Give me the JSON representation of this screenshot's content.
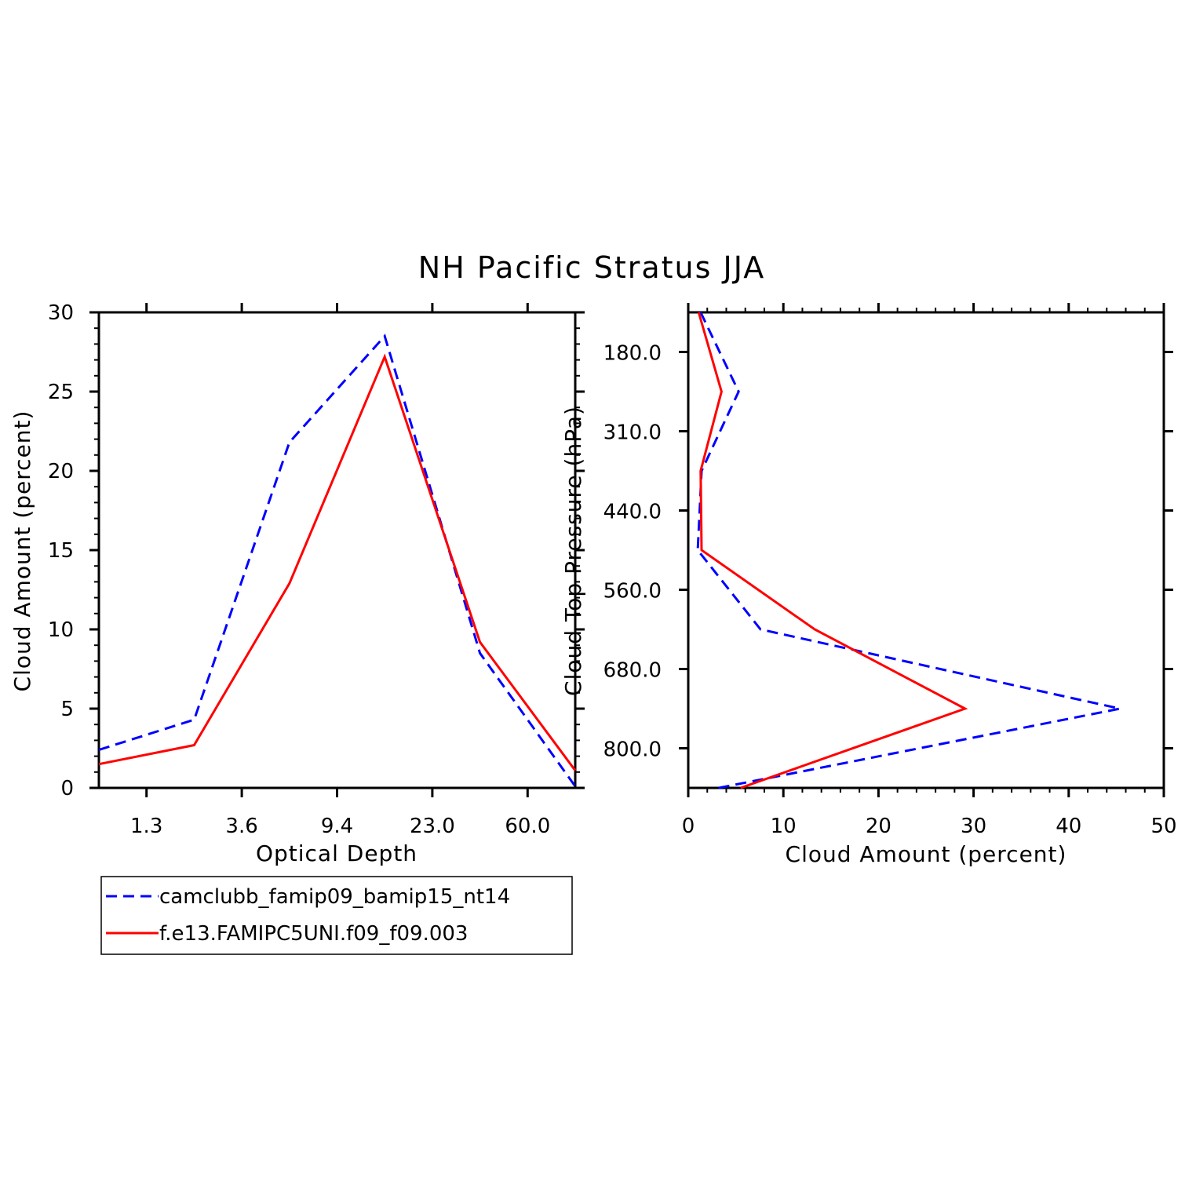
{
  "chart_data": [
    {
      "type": "line",
      "title": "NH Pacific Stratus JJA",
      "xlabel": "Optical Depth",
      "ylabel": "Cloud Amount (percent)",
      "x_tick_labels": [
        "1.3",
        "3.6",
        "9.4",
        "23.0",
        "60.0"
      ],
      "ylim": [
        0,
        30
      ],
      "y_ticks": [
        0,
        5,
        10,
        15,
        20,
        25,
        30
      ],
      "legend_position": "bottom-left",
      "series": [
        {
          "name": "camclubb_famip09_bamip15_nt14",
          "style": "dashed",
          "color": "#0000ff",
          "values": [
            2.4,
            4.3,
            21.8,
            28.5,
            8.5,
            0.1
          ]
        },
        {
          "name": "f.e13.FAMIPC5UNI.f09_f09.003",
          "style": "solid",
          "color": "#ff0000",
          "values": [
            1.5,
            2.7,
            12.9,
            27.2,
            9.2,
            1.1
          ]
        }
      ]
    },
    {
      "type": "line",
      "xlabel": "Cloud Amount (percent)",
      "ylabel": "Cloud Top Pressure (hPa)",
      "xlim": [
        0,
        50
      ],
      "x_ticks": [
        0,
        10,
        20,
        30,
        40,
        50
      ],
      "y_tick_labels": [
        "180.0",
        "310.0",
        "440.0",
        "560.0",
        "680.0",
        "800.0"
      ],
      "series": [
        {
          "name": "camclubb_famip09_bamip15_nt14",
          "style": "dashed",
          "color": "#0000ff",
          "values": [
            1.3,
            5.3,
            1.4,
            1.0,
            7.6,
            45.4,
            3.2
          ]
        },
        {
          "name": "f.e13.FAMIPC5UNI.f09_f09.003",
          "style": "solid",
          "color": "#ff0000",
          "values": [
            1.1,
            3.5,
            1.3,
            1.4,
            13.3,
            29.1,
            5.5
          ]
        }
      ]
    }
  ]
}
